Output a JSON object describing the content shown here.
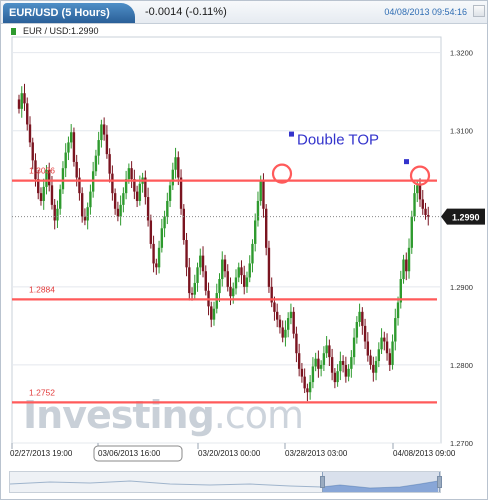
{
  "header": {
    "title": "EUR/USD (5 Hours)",
    "change": "-0.0014 (-0.11%)",
    "datetime": "04/08/2013 09:54:16"
  },
  "legend": {
    "label": "EUR / USD:1.2990",
    "color": "#2e9a2e"
  },
  "watermark": {
    "brand_bold": "Investing",
    "brand_light": ".com"
  },
  "colors": {
    "up": "#2e9a2e",
    "down": "#7a1420",
    "level_line": "#ff5a5a",
    "annotation": "#3333cc",
    "price_tag": "#1a1a1a"
  },
  "chart_data": {
    "type": "candlestick",
    "title": "EUR/USD (5 Hours)",
    "ylim": [
      1.27,
      1.322
    ],
    "y_ticks": [
      "1.3200",
      "1.3100",
      "1.2900",
      "1.2800",
      "1.2700"
    ],
    "x_ticks": [
      "02/27/2013 19:00",
      "03/06/2013 16:00",
      "03/20/2013 00:00",
      "03/28/2013 03:00",
      "04/08/2013 09:00"
    ],
    "x_selected_tick": "03/06/2013 16:00",
    "last_price": "1.2990",
    "last_price_value": 1.299,
    "levels": [
      {
        "label": "1.3036",
        "value": 1.3036
      },
      {
        "label": "1.2884",
        "value": 1.2884
      },
      {
        "label": "1.2752",
        "value": 1.2752
      }
    ],
    "annotation": "Double TOP",
    "closes": [
      1.3128,
      1.3148,
      1.3135,
      1.3108,
      1.3085,
      1.3062,
      1.3038,
      1.302,
      1.301,
      1.3028,
      1.305,
      1.303,
      1.3005,
      1.2985,
      1.3,
      1.3025,
      1.3052,
      1.3072,
      1.3085,
      1.3098,
      1.306,
      1.304,
      1.302,
      1.299,
      1.2985,
      1.3002,
      1.3022,
      1.3048,
      1.3068,
      1.3088,
      1.3108,
      1.3095,
      1.307,
      1.3045,
      1.302,
      1.3,
      1.299,
      1.3005,
      1.302,
      1.3038,
      1.3052,
      1.3038,
      1.3022,
      1.301,
      1.3032,
      1.304,
      1.3015,
      1.2985,
      1.2955,
      1.293,
      1.2925,
      1.295,
      1.2975,
      1.299,
      1.301,
      1.303,
      1.305,
      1.3066,
      1.304,
      1.3,
      1.296,
      1.2925,
      1.2892,
      1.289,
      1.2905,
      1.2925,
      1.294,
      1.292,
      1.2895,
      1.2875,
      1.2858,
      1.2872,
      1.2892,
      1.291,
      1.2935,
      1.292,
      1.29,
      1.2888,
      1.2898,
      1.2912,
      1.2925,
      1.2915,
      1.29,
      1.2912,
      1.293,
      1.2955,
      1.2985,
      1.301,
      1.3035,
      1.3,
      1.295,
      1.29,
      1.288,
      1.2868,
      1.2858,
      1.2848,
      1.2835,
      1.2845,
      1.286,
      1.2868,
      1.284,
      1.2815,
      1.2795,
      1.2785,
      1.277,
      1.2765,
      1.2778,
      1.2798,
      1.2808,
      1.2795,
      1.28,
      1.2815,
      1.2825,
      1.281,
      1.279,
      1.2778,
      1.2792,
      1.2805,
      1.28,
      1.2785,
      1.2795,
      1.281,
      1.2835,
      1.2855,
      1.2868,
      1.285,
      1.283,
      1.2812,
      1.28,
      1.279,
      1.2805,
      1.282,
      1.2835,
      1.283,
      1.2815,
      1.28,
      1.283,
      1.286,
      1.288,
      1.291,
      1.2935,
      1.292,
      1.295,
      1.299,
      1.302,
      1.303,
      1.3012,
      1.3,
      1.2992,
      1.299
    ]
  }
}
